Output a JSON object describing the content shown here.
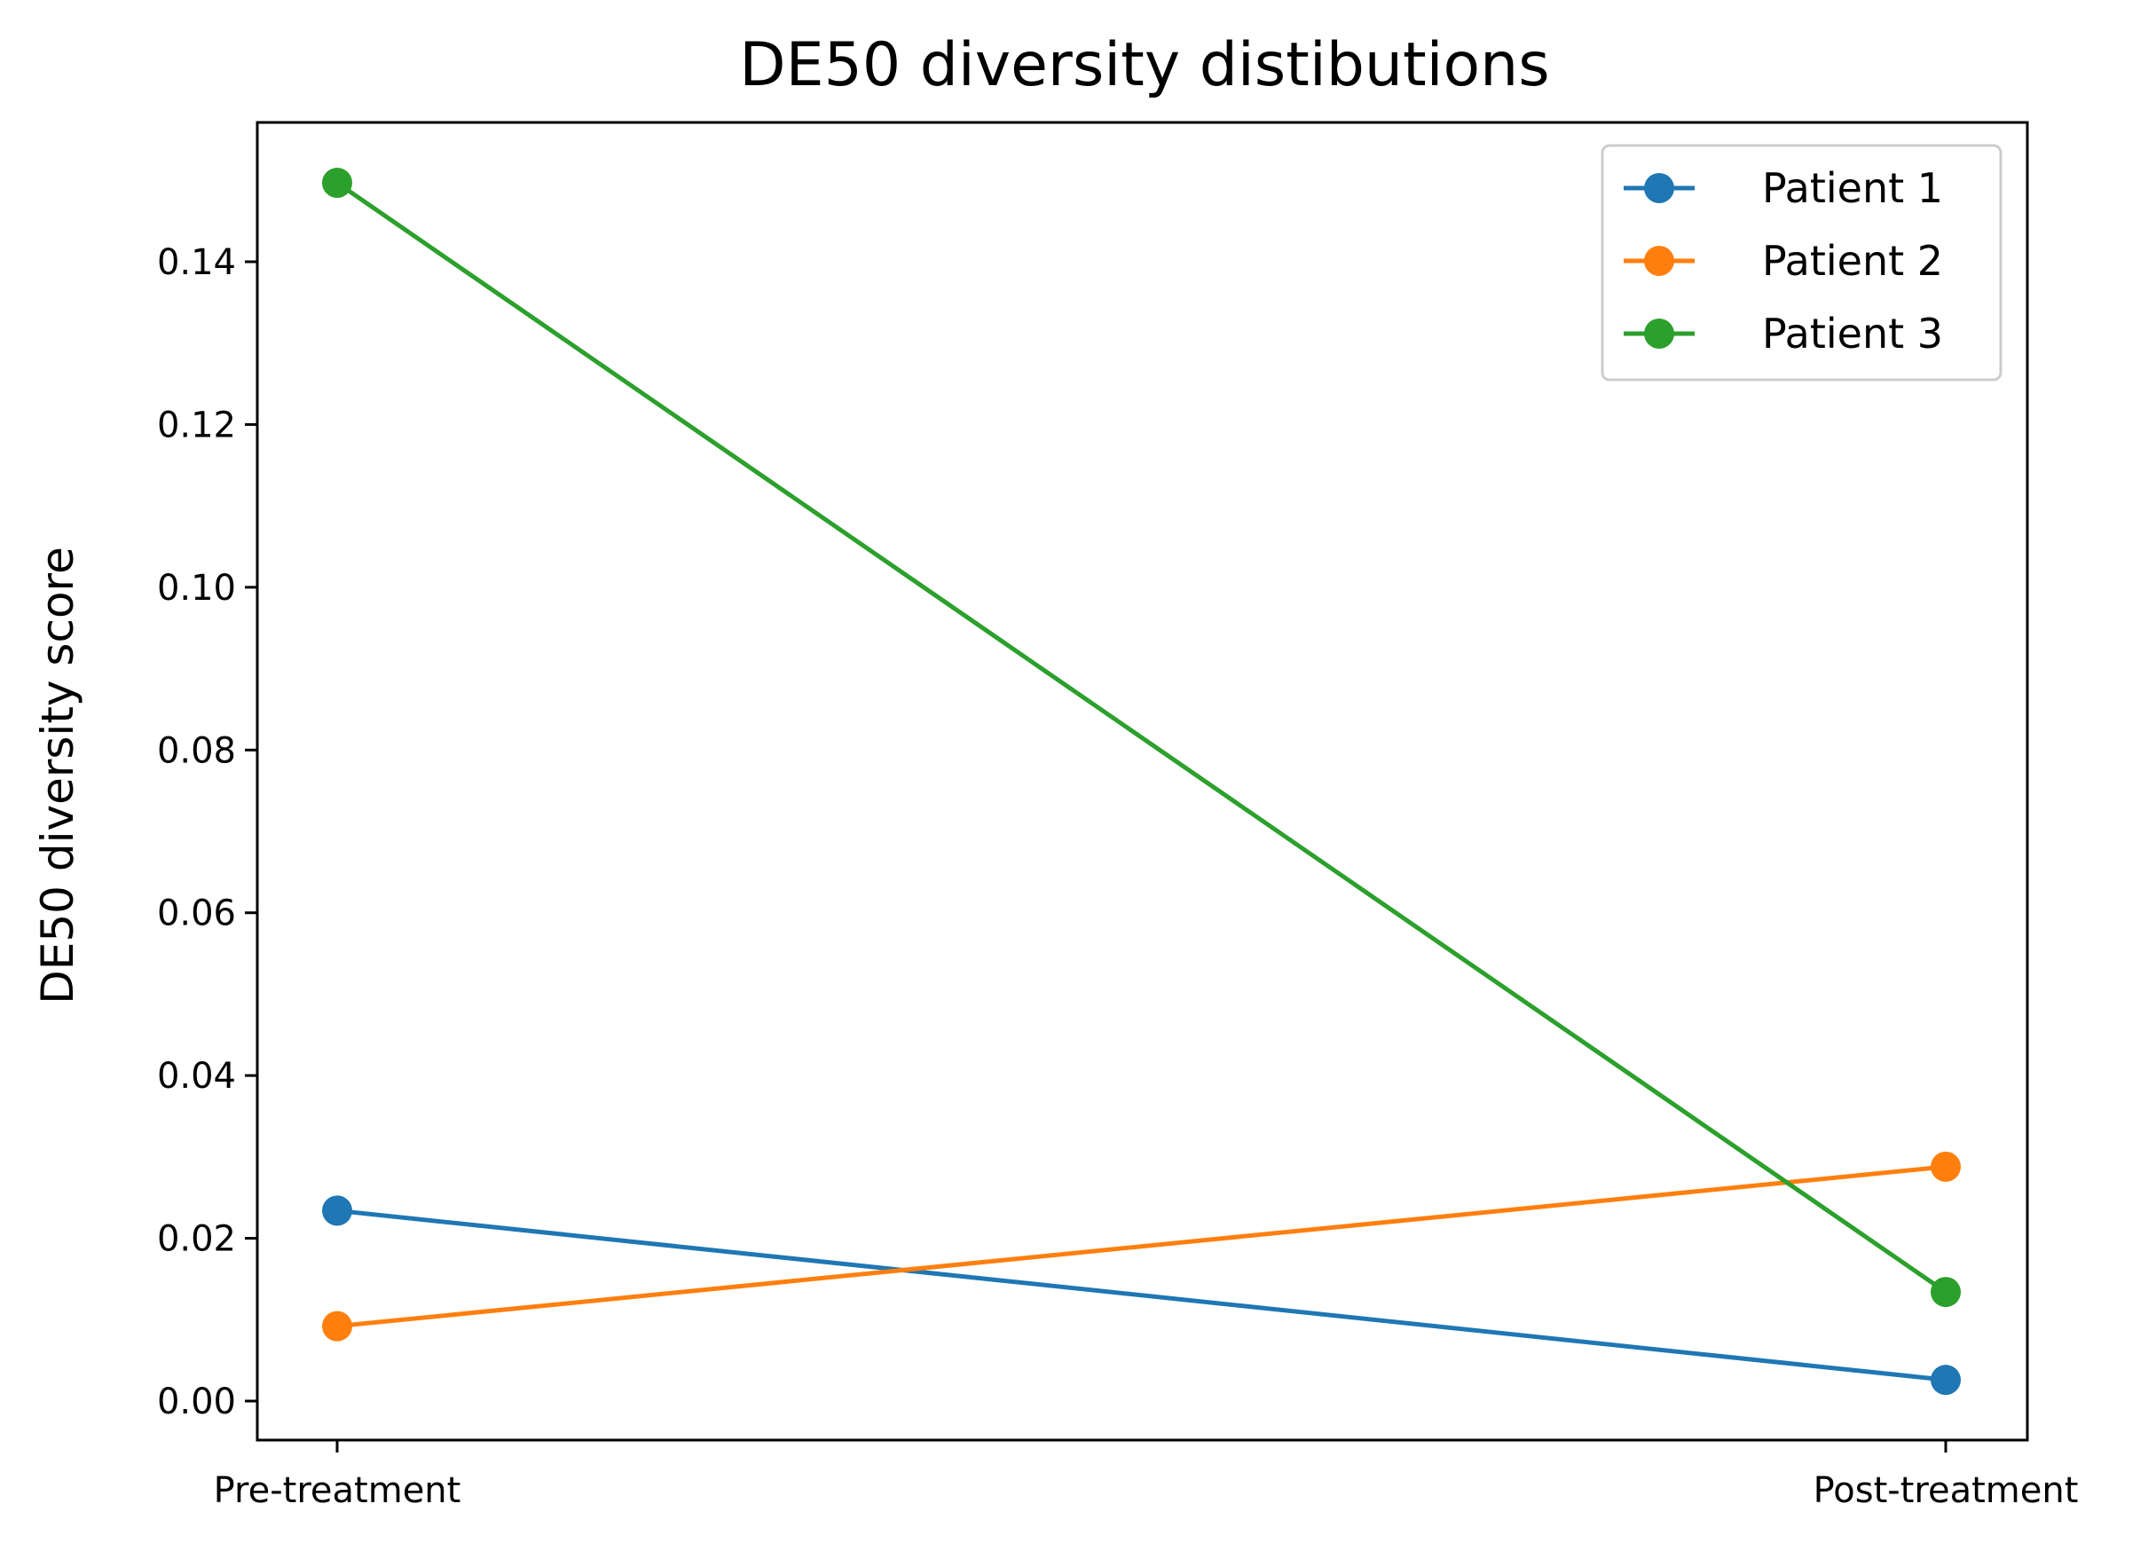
{
  "chart_data": {
    "type": "line",
    "title": "DE50 diversity distibutions",
    "xlabel": "",
    "ylabel": "DE50 diversity score",
    "categories": [
      "Pre-treatment",
      "Post-treatment"
    ],
    "ylim": [
      -0.0047,
      0.157
    ],
    "yticks": [
      "0.00",
      "0.02",
      "0.04",
      "0.06",
      "0.08",
      "0.10",
      "0.12",
      "0.14"
    ],
    "ytick_values": [
      0.0,
      0.02,
      0.04,
      0.06,
      0.08,
      0.1,
      0.12,
      0.14
    ],
    "grid": false,
    "legend_position": "top-right",
    "series": [
      {
        "name": "Patient 1",
        "color": "#1f77b4",
        "values": [
          0.0234,
          0.0026
        ]
      },
      {
        "name": "Patient 2",
        "color": "#ff7f0e",
        "values": [
          0.0092,
          0.0288
        ]
      },
      {
        "name": "Patient 3",
        "color": "#2ca02c",
        "values": [
          0.1497,
          0.0134
        ]
      }
    ]
  }
}
